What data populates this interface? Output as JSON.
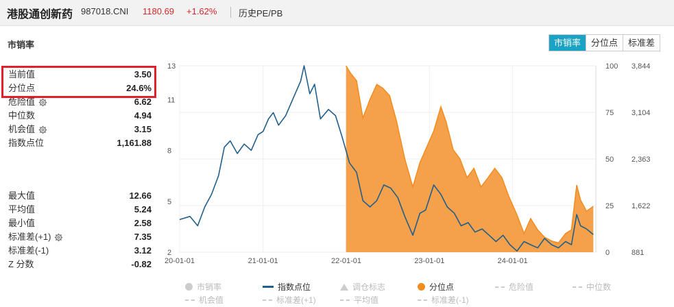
{
  "header": {
    "index_name": "港股通创新药",
    "index_code": "987018.CNI",
    "price": "1180.69",
    "change": "+1.62%",
    "history_link": "历史PE/PB"
  },
  "section_title": "市销率",
  "tabs": [
    {
      "label": "市销率",
      "active": true
    },
    {
      "label": "分位点",
      "active": false
    },
    {
      "label": "标准差",
      "active": false
    }
  ],
  "stats_current": [
    {
      "label": "当前值",
      "value": "3.50",
      "gear": false
    },
    {
      "label": "分位点",
      "value": "24.6%",
      "gear": false
    },
    {
      "label": "危险值",
      "value": "6.62",
      "gear": true
    },
    {
      "label": "中位数",
      "value": "4.94",
      "gear": false
    },
    {
      "label": "机会值",
      "value": "3.15",
      "gear": true
    },
    {
      "label": "指数点位",
      "value": "1,161.88",
      "gear": false
    }
  ],
  "stats_history": [
    {
      "label": "最大值",
      "value": "12.66",
      "gear": false
    },
    {
      "label": "平均值",
      "value": "5.24",
      "gear": false
    },
    {
      "label": "最小值",
      "value": "2.58",
      "gear": false
    },
    {
      "label": "标准差(+1)",
      "value": "7.35",
      "gear": true
    },
    {
      "label": "标准差(-1)",
      "value": "3.12",
      "gear": false
    },
    {
      "label": "Z 分数",
      "value": "-0.82",
      "gear": false
    }
  ],
  "legend": [
    {
      "label": "市销率",
      "symbol": "circle",
      "color": "#cccccc",
      "active": false
    },
    {
      "label": "指数点位",
      "symbol": "line",
      "color": "#1f5f8b",
      "active": true
    },
    {
      "label": "调仓标志",
      "symbol": "triangle",
      "color": "#cccccc",
      "active": false
    },
    {
      "label": "分位点",
      "symbol": "circle",
      "color": "#f28c1f",
      "active": true
    },
    {
      "label": "危险值",
      "symbol": "dash",
      "color": "#cccccc",
      "active": false
    },
    {
      "label": "中位数",
      "symbol": "dash",
      "color": "#cccccc",
      "active": false
    },
    {
      "label": "机会值",
      "symbol": "dash",
      "color": "#cccccc",
      "active": false
    },
    {
      "label": "标准差(+1)",
      "symbol": "dash",
      "color": "#cccccc",
      "active": false
    },
    {
      "label": "平均值",
      "symbol": "dash",
      "color": "#cccccc",
      "active": false
    },
    {
      "label": "标准差(-1)",
      "symbol": "dash",
      "color": "#cccccc",
      "active": false
    }
  ],
  "colors": {
    "accent": "#1aa3c4",
    "up": "#d8262a",
    "index_line": "#1f5f8b",
    "percentile_fill": "#f5a04a",
    "percentile_line": "#f28c1f",
    "highlight_border": "#e0202a"
  },
  "chart_data": {
    "type": "line",
    "x_ticks": [
      "20-01-01",
      "21-01-01",
      "22-01-01",
      "23-01-01",
      "24-01-01"
    ],
    "x_range": [
      "2020-01-01",
      "2024-12-31"
    ],
    "left_axis": {
      "ticks": [
        "2",
        "5",
        "8",
        "11",
        "13"
      ],
      "range": [
        2,
        13
      ]
    },
    "mid_axis": {
      "ticks": [
        "0",
        "25",
        "50",
        "75",
        "100"
      ],
      "range": [
        0,
        100
      ]
    },
    "right_axis": {
      "ticks": [
        "881",
        "1,622",
        "2,363",
        "3,104",
        "3,844"
      ],
      "range": [
        881,
        3844
      ]
    },
    "grid": true,
    "series": [
      {
        "name": "指数点位",
        "axis": "right",
        "points": [
          [
            "2020-01-01",
            1400
          ],
          [
            "2020-02-15",
            1450
          ],
          [
            "2020-03-20",
            1300
          ],
          [
            "2020-04-20",
            1600
          ],
          [
            "2020-05-20",
            1800
          ],
          [
            "2020-06-20",
            2100
          ],
          [
            "2020-07-15",
            2550
          ],
          [
            "2020-08-10",
            2650
          ],
          [
            "2020-09-10",
            2450
          ],
          [
            "2020-10-10",
            2600
          ],
          [
            "2020-11-10",
            2500
          ],
          [
            "2020-12-10",
            2750
          ],
          [
            "2021-01-01",
            2800
          ],
          [
            "2021-01-25",
            3000
          ],
          [
            "2021-02-15",
            3100
          ],
          [
            "2021-03-10",
            2900
          ],
          [
            "2021-04-10",
            3050
          ],
          [
            "2021-05-10",
            3300
          ],
          [
            "2021-06-15",
            3600
          ],
          [
            "2021-06-30",
            3844
          ],
          [
            "2021-07-25",
            3400
          ],
          [
            "2021-08-15",
            3550
          ],
          [
            "2021-09-10",
            3000
          ],
          [
            "2021-10-15",
            3150
          ],
          [
            "2021-11-15",
            3050
          ],
          [
            "2021-12-15",
            2700
          ],
          [
            "2022-01-15",
            2300
          ],
          [
            "2022-02-15",
            2150
          ],
          [
            "2022-03-15",
            1700
          ],
          [
            "2022-04-15",
            1600
          ],
          [
            "2022-05-15",
            1700
          ],
          [
            "2022-06-15",
            1950
          ],
          [
            "2022-07-15",
            1900
          ],
          [
            "2022-08-15",
            1750
          ],
          [
            "2022-09-15",
            1450
          ],
          [
            "2022-10-20",
            1150
          ],
          [
            "2022-11-20",
            1500
          ],
          [
            "2022-12-15",
            1550
          ],
          [
            "2023-01-20",
            1950
          ],
          [
            "2023-02-20",
            1800
          ],
          [
            "2023-03-20",
            1600
          ],
          [
            "2023-04-20",
            1500
          ],
          [
            "2023-05-20",
            1300
          ],
          [
            "2023-06-20",
            1350
          ],
          [
            "2023-07-20",
            1200
          ],
          [
            "2023-08-20",
            1250
          ],
          [
            "2023-09-20",
            1150
          ],
          [
            "2023-10-20",
            1050
          ],
          [
            "2023-11-20",
            1150
          ],
          [
            "2023-12-20",
            1000
          ],
          [
            "2024-01-20",
            900
          ],
          [
            "2024-02-20",
            1050
          ],
          [
            "2024-03-20",
            1000
          ],
          [
            "2024-04-20",
            950
          ],
          [
            "2024-05-20",
            1100
          ],
          [
            "2024-06-20",
            1000
          ],
          [
            "2024-07-20",
            950
          ],
          [
            "2024-08-20",
            1050
          ],
          [
            "2024-09-15",
            1000
          ],
          [
            "2024-10-08",
            1480
          ],
          [
            "2024-10-25",
            1300
          ],
          [
            "2024-11-20",
            1250
          ],
          [
            "2024-12-20",
            1161.88
          ]
        ]
      },
      {
        "name": "分位点",
        "axis": "mid",
        "points": [
          [
            "2021-12-31",
            100
          ],
          [
            "2022-01-20",
            96
          ],
          [
            "2022-02-15",
            92
          ],
          [
            "2022-03-15",
            72
          ],
          [
            "2022-04-15",
            82
          ],
          [
            "2022-05-15",
            90
          ],
          [
            "2022-06-10",
            88
          ],
          [
            "2022-07-10",
            84
          ],
          [
            "2022-08-10",
            70
          ],
          [
            "2022-09-15",
            50
          ],
          [
            "2022-10-20",
            35
          ],
          [
            "2022-11-20",
            48
          ],
          [
            "2022-12-15",
            55
          ],
          [
            "2023-01-20",
            65
          ],
          [
            "2023-02-20",
            78
          ],
          [
            "2023-03-15",
            70
          ],
          [
            "2023-04-15",
            55
          ],
          [
            "2023-05-15",
            50
          ],
          [
            "2023-06-15",
            40
          ],
          [
            "2023-07-15",
            45
          ],
          [
            "2023-08-15",
            35
          ],
          [
            "2023-09-15",
            40
          ],
          [
            "2023-10-15",
            45
          ],
          [
            "2023-11-15",
            40
          ],
          [
            "2023-12-15",
            30
          ],
          [
            "2024-01-20",
            20
          ],
          [
            "2024-02-20",
            10
          ],
          [
            "2024-03-20",
            18
          ],
          [
            "2024-04-20",
            12
          ],
          [
            "2024-05-20",
            8
          ],
          [
            "2024-06-20",
            6
          ],
          [
            "2024-07-20",
            5
          ],
          [
            "2024-08-20",
            10
          ],
          [
            "2024-09-15",
            12
          ],
          [
            "2024-10-08",
            36
          ],
          [
            "2024-10-25",
            28
          ],
          [
            "2024-11-20",
            22
          ],
          [
            "2024-12-20",
            24.6
          ]
        ]
      }
    ]
  }
}
